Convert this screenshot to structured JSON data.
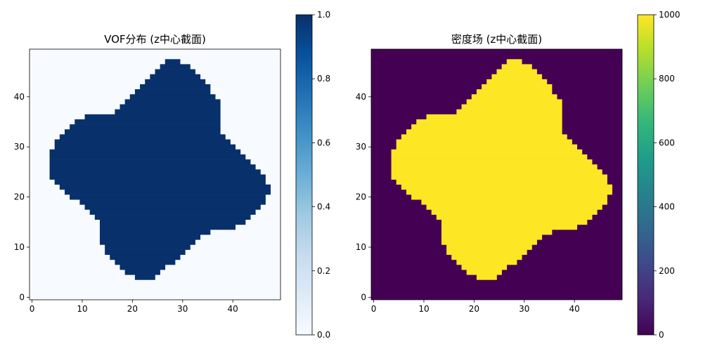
{
  "chart_data": [
    {
      "type": "heatmap",
      "title": "VOF分布 (z中心截面)",
      "xlabel": "",
      "ylabel": "",
      "xlim": [
        -0.5,
        49.5
      ],
      "ylim": [
        -0.5,
        49.5
      ],
      "x_ticks": [
        0,
        10,
        20,
        30,
        40
      ],
      "y_ticks": [
        0,
        10,
        20,
        30,
        40
      ],
      "colormap": "Blues",
      "low_color": "#f7fbff",
      "high_color": "#08306b",
      "inside_value": 1.0,
      "outside_value": 0.0,
      "colorbar": {
        "range": [
          0.0,
          1.0
        ],
        "ticks": [
          "0.0",
          "0.2",
          "0.4",
          "0.6",
          "0.8",
          "1.0"
        ],
        "stops": [
          "#f7fbff",
          "#deebf7",
          "#c6dbef",
          "#9ecae1",
          "#6baed6",
          "#4292c6",
          "#2171b5",
          "#08519c",
          "#08306b"
        ]
      },
      "grid": false
    },
    {
      "type": "heatmap",
      "title": "密度场 (z中心截面)",
      "xlabel": "",
      "ylabel": "",
      "xlim": [
        -0.5,
        49.5
      ],
      "ylim": [
        -0.5,
        49.5
      ],
      "x_ticks": [
        0,
        10,
        20,
        30,
        40
      ],
      "y_ticks": [
        0,
        10,
        20,
        30,
        40
      ],
      "colormap": "viridis",
      "low_color": "#440154",
      "high_color": "#fde725",
      "inside_value": 1000,
      "outside_value": 0,
      "colorbar": {
        "range": [
          0,
          1000
        ],
        "ticks": [
          "0",
          "200",
          "400",
          "600",
          "800",
          "1000"
        ],
        "stops": [
          "#440154",
          "#482878",
          "#3e4989",
          "#31688e",
          "#26828e",
          "#1f9e89",
          "#35b779",
          "#6ece58",
          "#b5de2b",
          "#fde725"
        ]
      },
      "grid": false
    }
  ],
  "shape_rows": [
    [
      4,
      21,
      24
    ],
    [
      5,
      19,
      25
    ],
    [
      6,
      18,
      26
    ],
    [
      7,
      17,
      28
    ],
    [
      8,
      16,
      29
    ],
    [
      9,
      15,
      30
    ],
    [
      10,
      15,
      31
    ],
    [
      11,
      14,
      32
    ],
    [
      12,
      14,
      33
    ],
    [
      13,
      14,
      35
    ],
    [
      14,
      14,
      40
    ],
    [
      15,
      14,
      42
    ],
    [
      16,
      13,
      43
    ],
    [
      17,
      12,
      44
    ],
    [
      18,
      11,
      45
    ],
    [
      19,
      10,
      46
    ],
    [
      20,
      8,
      46
    ],
    [
      21,
      7,
      47
    ],
    [
      22,
      6,
      47
    ],
    [
      23,
      5,
      46
    ],
    [
      24,
      4,
      46
    ],
    [
      25,
      4,
      45
    ],
    [
      26,
      4,
      44
    ],
    [
      27,
      4,
      43
    ],
    [
      28,
      4,
      42
    ],
    [
      29,
      4,
      41
    ],
    [
      30,
      5,
      40
    ],
    [
      31,
      5,
      39
    ],
    [
      32,
      6,
      38
    ],
    [
      33,
      7,
      37
    ],
    [
      34,
      8,
      37
    ],
    [
      35,
      9,
      37
    ],
    [
      36,
      11,
      37
    ],
    [
      37,
      17,
      37
    ],
    [
      38,
      18,
      37
    ],
    [
      39,
      19,
      37
    ],
    [
      40,
      20,
      36
    ],
    [
      41,
      21,
      35
    ],
    [
      42,
      22,
      35
    ],
    [
      43,
      23,
      34
    ],
    [
      44,
      24,
      33
    ],
    [
      45,
      25,
      32
    ],
    [
      46,
      26,
      31
    ],
    [
      47,
      27,
      29
    ]
  ]
}
